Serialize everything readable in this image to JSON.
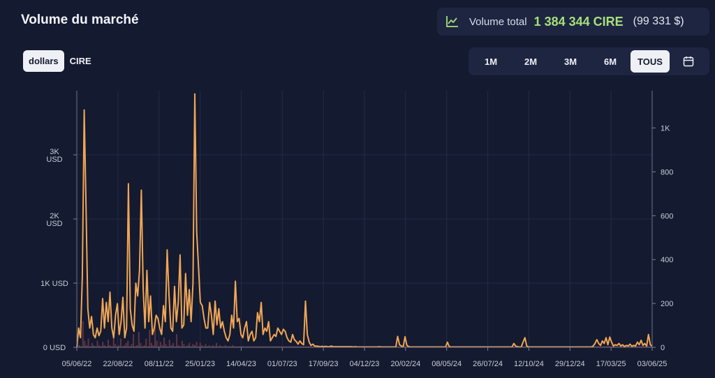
{
  "header": {
    "title": "Volume du marché",
    "total_label": "Volume total",
    "total_value": "1 384 344 CIRE",
    "total_usd": "(99 331 $)",
    "total_icon": "trend-line-icon"
  },
  "currency_toggle": {
    "options": [
      {
        "label": "dollars",
        "active": true
      },
      {
        "label": "CIRE",
        "active": false
      }
    ]
  },
  "range": {
    "buttons": [
      {
        "label": "1M",
        "active": false
      },
      {
        "label": "2M",
        "active": false
      },
      {
        "label": "3M",
        "active": false
      },
      {
        "label": "6M",
        "active": false
      },
      {
        "label": "TOUS",
        "active": true
      }
    ],
    "calendar_icon": "calendar-icon"
  },
  "colors": {
    "background": "#141a2f",
    "panel": "#1e2541",
    "accent_green": "#a6e07a",
    "line": "#f0a656",
    "bars": "#6b3a46"
  },
  "chart_data": {
    "type": "line",
    "x_tick_labels": [
      "05/06/22",
      "22/08/22",
      "08/11/22",
      "25/01/23",
      "14/04/23",
      "01/07/23",
      "17/09/23",
      "04/12/23",
      "20/02/24",
      "08/05/24",
      "26/07/24",
      "12/10/24",
      "29/12/24",
      "17/03/25",
      "03/06/25"
    ],
    "y_left_ticks": [
      {
        "value": 0,
        "label": "0 USD"
      },
      {
        "value": 1000,
        "label": "1K USD"
      },
      {
        "value": 2000,
        "label": "2K\nUSD"
      },
      {
        "value": 3000,
        "label": "3K\nUSD"
      }
    ],
    "y_left_lim": [
      0,
      4000
    ],
    "y_right_ticks": [
      {
        "value": 0,
        "label": "0"
      },
      {
        "value": 200,
        "label": "200"
      },
      {
        "value": 400,
        "label": "400"
      },
      {
        "value": 600,
        "label": "600"
      },
      {
        "value": 800,
        "label": "800"
      },
      {
        "value": 1000,
        "label": "1K"
      }
    ],
    "y_right_lim": [
      0,
      1170
    ],
    "grid": true,
    "series": [
      {
        "axis": "left",
        "values": [
          0,
          300,
          150,
          1100,
          3700,
          2200,
          600,
          300,
          480,
          200,
          150,
          300,
          180,
          250,
          760,
          300,
          700,
          400,
          860,
          300,
          150,
          500,
          680,
          200,
          400,
          780,
          150,
          300,
          2550,
          600,
          350,
          250,
          1000,
          800,
          1200,
          2450,
          900,
          300,
          1200,
          400,
          800,
          200,
          300,
          500,
          450,
          300,
          200,
          650,
          400,
          1520,
          800,
          300,
          250,
          950,
          400,
          700,
          1440,
          300,
          350,
          1150,
          500,
          900,
          400,
          1000,
          3950,
          1800,
          1250,
          700,
          650,
          450,
          300,
          300,
          700,
          500,
          200,
          720,
          350,
          600,
          300,
          400,
          250,
          150,
          100,
          200,
          500,
          300,
          1030,
          400,
          450,
          200,
          150,
          300,
          400,
          100,
          200,
          250,
          100,
          150,
          540,
          400,
          700,
          200,
          300,
          250,
          400,
          100,
          150,
          200,
          170,
          300,
          250,
          200,
          280,
          250,
          150,
          100,
          80,
          200,
          120,
          90,
          50,
          100,
          60,
          40,
          720,
          200,
          80,
          30,
          50,
          20,
          20,
          15,
          10,
          15,
          10,
          15,
          10,
          10,
          20,
          10,
          10,
          10,
          10,
          10,
          10,
          10,
          10,
          10,
          10,
          10,
          5,
          10,
          5,
          5,
          5,
          5,
          5,
          5,
          5,
          5,
          5,
          5,
          5,
          5,
          10,
          5,
          5,
          5,
          5,
          5,
          5,
          5,
          5,
          5,
          170,
          40,
          20,
          10,
          165,
          30,
          10,
          5,
          5,
          5,
          5,
          5,
          5,
          5,
          5,
          5,
          5,
          5,
          5,
          5,
          5,
          5,
          5,
          5,
          5,
          5,
          5,
          80,
          10,
          5,
          5,
          5,
          5,
          5,
          5,
          5,
          5,
          5,
          5,
          5,
          5,
          5,
          5,
          5,
          5,
          5,
          5,
          5,
          5,
          5,
          5,
          5,
          5,
          5,
          5,
          5,
          5,
          5,
          5,
          5,
          5,
          5,
          5,
          60,
          20,
          10,
          5,
          5,
          80,
          150,
          20,
          5,
          5,
          5,
          5,
          5,
          5,
          5,
          5,
          5,
          5,
          5,
          5,
          5,
          5,
          5,
          5,
          5,
          5,
          5,
          5,
          5,
          5,
          5,
          5,
          5,
          5,
          5,
          5,
          5,
          5,
          5,
          5,
          5,
          5,
          5,
          20,
          60,
          120,
          60,
          30,
          100,
          60,
          150,
          40,
          160,
          80,
          20,
          40,
          30,
          60,
          20,
          40,
          10,
          30,
          20,
          50,
          15,
          30,
          20,
          80,
          40,
          110,
          30,
          60,
          20,
          200,
          40,
          20
        ]
      },
      {
        "axis": "right",
        "values": [
          20,
          10,
          5,
          120,
          30,
          10,
          40,
          5,
          20,
          10,
          5,
          30,
          10,
          5,
          25,
          10,
          5,
          35,
          10,
          5,
          60,
          15,
          5,
          10,
          40,
          5,
          10,
          20,
          30,
          5,
          15,
          60,
          5,
          10,
          70,
          20,
          5,
          10,
          40,
          5,
          80,
          20,
          10,
          130,
          30,
          5,
          25,
          10,
          45,
          15,
          5,
          35,
          10,
          20,
          5,
          60,
          10,
          5,
          30,
          15,
          5,
          10,
          20,
          5,
          15,
          10,
          25,
          5,
          20,
          10,
          5,
          15,
          5,
          10,
          5,
          10,
          5,
          20,
          5,
          10,
          5,
          5,
          10,
          5,
          5,
          5,
          10,
          5,
          5,
          5,
          5,
          5,
          5,
          5,
          5,
          5,
          5,
          5,
          5,
          5,
          5,
          5,
          5,
          5,
          5,
          5,
          5,
          5,
          5,
          5,
          5,
          5,
          5,
          5,
          5,
          5,
          5,
          5,
          5,
          5,
          5,
          5,
          5,
          5,
          5,
          5,
          5,
          5,
          5,
          5,
          5,
          5,
          5,
          5,
          5,
          5,
          5,
          5,
          5,
          5,
          5,
          5,
          5,
          5,
          5,
          5,
          5,
          5,
          5,
          5,
          5,
          5,
          5,
          5,
          5,
          5,
          5,
          5,
          5,
          5,
          5,
          5,
          5,
          5,
          5,
          5,
          5,
          5,
          5,
          5,
          5,
          5,
          5,
          5,
          5,
          5,
          5,
          5,
          5,
          5,
          5,
          5,
          5,
          5,
          5,
          5,
          5,
          5,
          5,
          5,
          5,
          5,
          5,
          5,
          5,
          5,
          5,
          5,
          5,
          5,
          5,
          5,
          5,
          5,
          5,
          5,
          5,
          5,
          5,
          5,
          5,
          5,
          5,
          5,
          5,
          5,
          5,
          5,
          5,
          5,
          5,
          5,
          5,
          5,
          5,
          5,
          5,
          5,
          5,
          5,
          5,
          5,
          5,
          5,
          5,
          5,
          5,
          5,
          5,
          5,
          5,
          5,
          5,
          5,
          5,
          5,
          5,
          5,
          5,
          5,
          5,
          5,
          5,
          5,
          5,
          5,
          5,
          5,
          5,
          5,
          5,
          5,
          5,
          5,
          5,
          5,
          5,
          5,
          5,
          5,
          5,
          5,
          5,
          5,
          5,
          5,
          5,
          5,
          5,
          5,
          5,
          5,
          5,
          5,
          5,
          5,
          5,
          5,
          5,
          5,
          5,
          5,
          5,
          5,
          5,
          5,
          5,
          5,
          5,
          5,
          5,
          5,
          5,
          5,
          5,
          5,
          5,
          5,
          5,
          5,
          5,
          5,
          5,
          5,
          5,
          5,
          5,
          5,
          5
        ]
      }
    ]
  }
}
